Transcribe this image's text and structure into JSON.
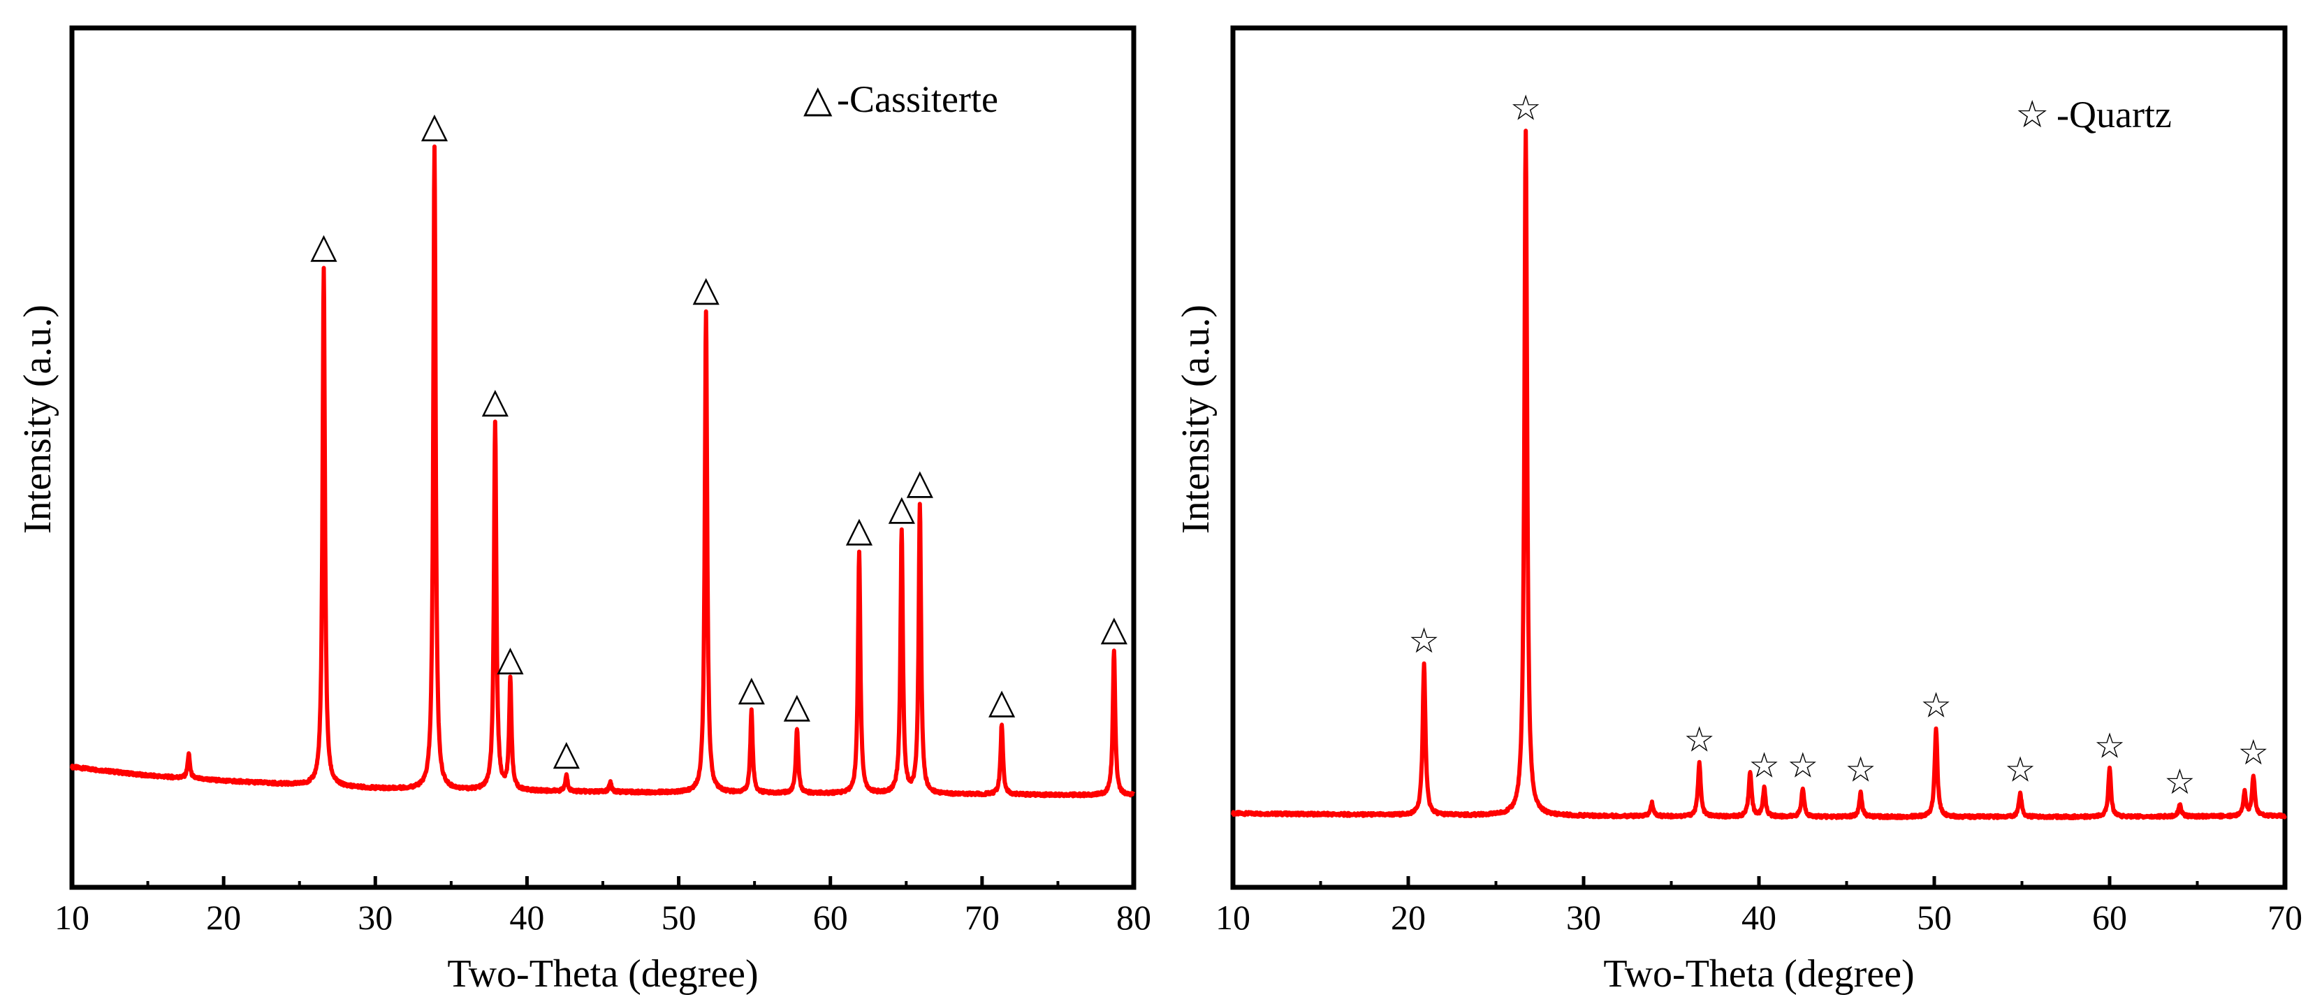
{
  "chart_data": [
    {
      "id": "left",
      "type": "line",
      "title": "",
      "xlabel": "Two-Theta (degree)",
      "ylabel": "Intensity (a.u.)",
      "xlim": [
        10,
        80
      ],
      "ylim": [
        0,
        100
      ],
      "x_ticks": [
        10,
        20,
        30,
        40,
        50,
        60,
        70,
        80
      ],
      "y_ticks_shown": false,
      "legend": {
        "symbol": "△",
        "label": "-Cassiterte",
        "position": "top-right"
      },
      "line_color": "#ff0000",
      "baseline": [
        [
          10,
          14.0
        ],
        [
          15,
          13.0
        ],
        [
          20,
          12.4
        ],
        [
          25,
          11.9
        ],
        [
          30,
          11.5
        ],
        [
          35,
          11.3
        ],
        [
          40,
          11.2
        ],
        [
          50,
          11.0
        ],
        [
          60,
          10.9
        ],
        [
          70,
          10.8
        ],
        [
          80,
          10.7
        ]
      ],
      "peaks": [
        {
          "x": 17.7,
          "y": 15.5,
          "marker": false
        },
        {
          "x": 26.6,
          "y": 72.0,
          "marker": true
        },
        {
          "x": 33.9,
          "y": 86.0,
          "marker": true
        },
        {
          "x": 37.9,
          "y": 54.0,
          "marker": true
        },
        {
          "x": 38.9,
          "y": 24.0,
          "marker": true
        },
        {
          "x": 42.6,
          "y": 13.0,
          "marker": true
        },
        {
          "x": 45.5,
          "y": 12.2,
          "marker": false
        },
        {
          "x": 51.8,
          "y": 67.0,
          "marker": true
        },
        {
          "x": 54.8,
          "y": 20.5,
          "marker": true
        },
        {
          "x": 57.8,
          "y": 18.5,
          "marker": true
        },
        {
          "x": 61.9,
          "y": 39.0,
          "marker": true
        },
        {
          "x": 64.7,
          "y": 41.5,
          "marker": true
        },
        {
          "x": 65.9,
          "y": 44.5,
          "marker": true
        },
        {
          "x": 71.3,
          "y": 19.0,
          "marker": true
        },
        {
          "x": 78.7,
          "y": 27.5,
          "marker": true
        }
      ]
    },
    {
      "id": "right",
      "type": "line",
      "title": "",
      "xlabel": "Two-Theta (degree)",
      "ylabel": "Intensity (a.u.)",
      "xlim": [
        10,
        70
      ],
      "ylim": [
        0,
        100
      ],
      "x_ticks": [
        10,
        20,
        30,
        40,
        50,
        60,
        70
      ],
      "y_ticks_shown": false,
      "legend": {
        "symbol": "☆",
        "label": "-Quartz",
        "position": "top-right"
      },
      "line_color": "#ff0000",
      "baseline": [
        [
          10,
          8.6
        ],
        [
          20,
          8.4
        ],
        [
          30,
          8.3
        ],
        [
          40,
          8.2
        ],
        [
          50,
          8.2
        ],
        [
          60,
          8.2
        ],
        [
          70,
          8.3
        ]
      ],
      "peaks": [
        {
          "x": 20.9,
          "y": 26.0,
          "marker": true
        },
        {
          "x": 26.7,
          "y": 88.0,
          "marker": true
        },
        {
          "x": 33.9,
          "y": 9.8,
          "marker": false
        },
        {
          "x": 36.6,
          "y": 14.5,
          "marker": true
        },
        {
          "x": 39.5,
          "y": 13.5,
          "marker": false
        },
        {
          "x": 40.3,
          "y": 11.5,
          "marker": true
        },
        {
          "x": 42.5,
          "y": 11.5,
          "marker": true
        },
        {
          "x": 45.8,
          "y": 11.0,
          "marker": true
        },
        {
          "x": 50.1,
          "y": 18.5,
          "marker": true
        },
        {
          "x": 54.9,
          "y": 11.0,
          "marker": true
        },
        {
          "x": 60.0,
          "y": 13.8,
          "marker": true
        },
        {
          "x": 64.0,
          "y": 9.6,
          "marker": true
        },
        {
          "x": 67.7,
          "y": 11.0,
          "marker": false
        },
        {
          "x": 68.2,
          "y": 13.0,
          "marker": true
        }
      ]
    }
  ]
}
